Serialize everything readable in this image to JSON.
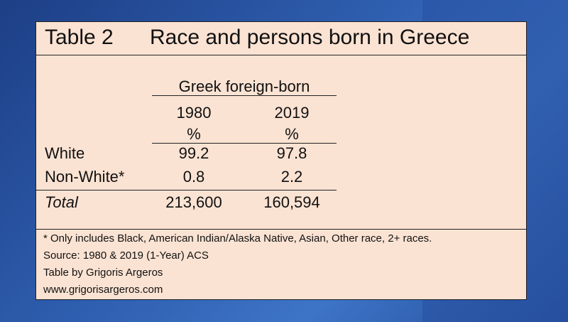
{
  "title": {
    "label": "Table 2",
    "text": "Race and persons born in Greece"
  },
  "table": {
    "group_header": "Greek foreign-born",
    "columns": [
      "1980",
      "2019"
    ],
    "units": [
      "%",
      "%"
    ],
    "rows": [
      [
        "White",
        "99.2",
        "97.8"
      ],
      [
        "Non-White*",
        "0.8",
        "2.2"
      ],
      [
        "Total",
        "213,600",
        "160,594"
      ]
    ]
  },
  "notes": [
    "* Only includes Black, American Indian/Alaska Native, Asian, Other race, 2+ races.",
    "Source: 1980 & 2019 (1-Year) ACS",
    "Table by Grigoris Argeros",
    "www.grigorisargeros.com"
  ]
}
